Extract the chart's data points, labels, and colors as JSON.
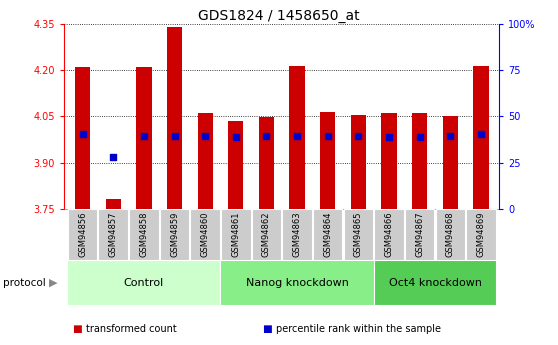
{
  "title": "GDS1824 / 1458650_at",
  "samples": [
    "GSM94856",
    "GSM94857",
    "GSM94858",
    "GSM94859",
    "GSM94860",
    "GSM94861",
    "GSM94862",
    "GSM94863",
    "GSM94864",
    "GSM94865",
    "GSM94866",
    "GSM94867",
    "GSM94868",
    "GSM94869"
  ],
  "transformed_counts": [
    4.21,
    3.78,
    4.21,
    4.34,
    4.06,
    4.035,
    4.048,
    4.215,
    4.065,
    4.055,
    4.06,
    4.06,
    4.05,
    4.215
  ],
  "percentile_y_vals": [
    3.993,
    3.917,
    3.988,
    3.988,
    3.988,
    3.983,
    3.985,
    3.988,
    3.988,
    3.985,
    3.983,
    3.983,
    3.985,
    3.993
  ],
  "bar_color": "#cc0000",
  "dot_color": "#0000cc",
  "ylim_left": [
    3.75,
    4.35
  ],
  "yticks_left": [
    3.75,
    3.9,
    4.05,
    4.2,
    4.35
  ],
  "ylim_right": [
    0,
    100
  ],
  "yticks_right": [
    0,
    25,
    50,
    75,
    100
  ],
  "ytick_labels_right": [
    "0",
    "25",
    "50",
    "75",
    "100%"
  ],
  "groups": [
    {
      "label": "Control",
      "start": 0,
      "end": 5,
      "color": "#ccffcc"
    },
    {
      "label": "Nanog knockdown",
      "start": 5,
      "end": 10,
      "color": "#88ee88"
    },
    {
      "label": "Oct4 knockdown",
      "start": 10,
      "end": 14,
      "color": "#55cc55"
    }
  ],
  "protocol_label": "protocol",
  "legend_items": [
    {
      "color": "#cc0000",
      "label": "transformed count"
    },
    {
      "color": "#0000cc",
      "label": "percentile rank within the sample"
    }
  ],
  "bar_width": 0.5,
  "bar_base": 3.75,
  "sample_box_color": "#cccccc",
  "bg_color": "#ffffff",
  "title_fontsize": 10,
  "tick_fontsize": 7,
  "sample_fontsize": 6,
  "group_fontsize": 8,
  "legend_fontsize": 7
}
